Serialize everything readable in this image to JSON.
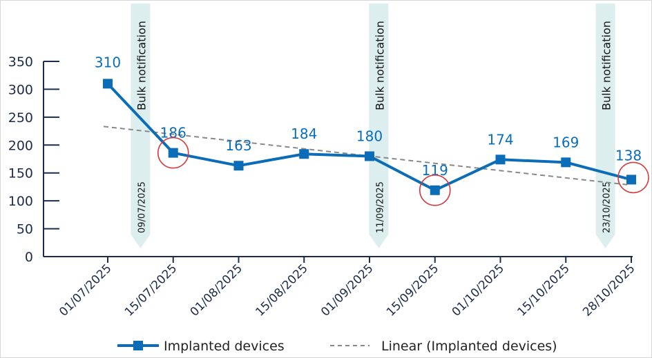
{
  "chart_data": {
    "type": "line",
    "title": "",
    "xlabel": "",
    "ylabel": "",
    "categories": [
      "01/07/2025",
      "15/07/2025",
      "01/08/2025",
      "15/08/2025",
      "01/09/2025",
      "15/09/2025",
      "01/10/2025",
      "15/10/2025",
      "28/10/2025"
    ],
    "series": [
      {
        "name": "Implanted devices",
        "values": [
          310,
          186,
          163,
          184,
          180,
          119,
          174,
          169,
          138
        ],
        "color": "#0b6cb8",
        "marker": "square"
      }
    ],
    "trendline": {
      "name": "Linear (Implanted devices)",
      "type": "linear",
      "color": "#888888",
      "style": "dashed"
    },
    "ylim": [
      0,
      350
    ],
    "yticks": [
      0,
      50,
      100,
      150,
      200,
      250,
      300,
      350
    ],
    "grid": false,
    "legend": "bottom",
    "highlighted_points": [
      "15/07/2025",
      "15/09/2025",
      "28/10/2025"
    ],
    "highlight_color": "#d23c3f",
    "annotations": [
      {
        "label": "Bulk notification",
        "date": "09/07/2025",
        "between": [
          0,
          1
        ]
      },
      {
        "label": "Bulk notification",
        "date": "11/09/2025",
        "between": [
          4,
          5
        ]
      },
      {
        "label": "Bulk notification",
        "date": "23/10/2025",
        "between": [
          7,
          8
        ]
      }
    ],
    "annotation_color": "#dcefee",
    "axis_color": "#1d2b4b"
  }
}
